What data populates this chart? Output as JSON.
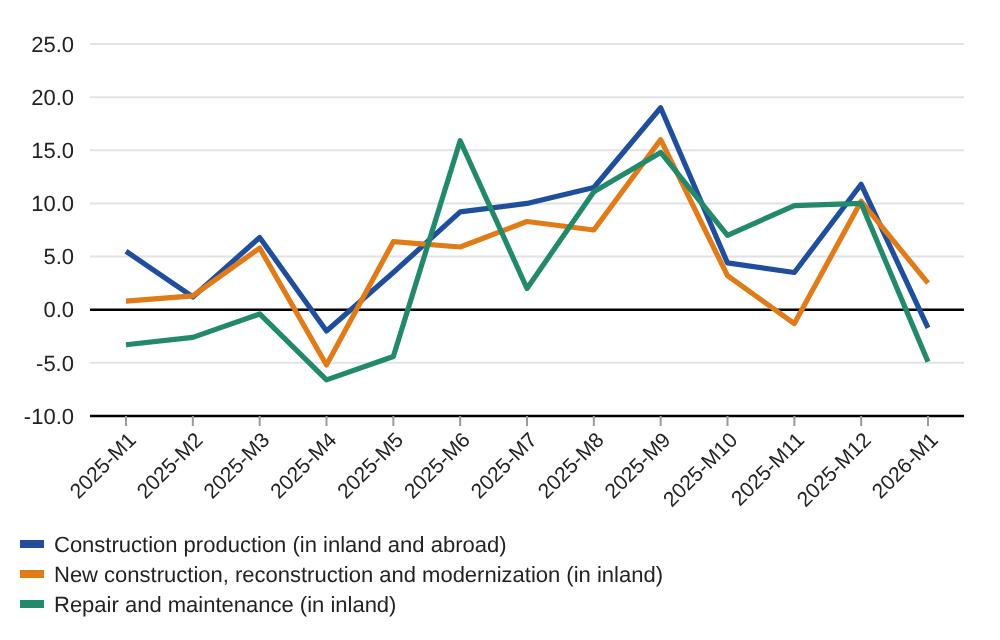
{
  "chart_data": {
    "type": "line",
    "categories": [
      "2025-M1",
      "2025-M2",
      "2025-M3",
      "2025-M4",
      "2025-M5",
      "2025-M6",
      "2025-M7",
      "2025-M8",
      "2025-M9",
      "2025-M10",
      "2025-M11",
      "2025-M12",
      "2026-M1"
    ],
    "series": [
      {
        "name": "Construction production (in inland and abroad)",
        "color": "#1f4e9c",
        "values": [
          5.5,
          1.2,
          6.8,
          -2.0,
          3.5,
          9.2,
          10.0,
          11.5,
          19.0,
          4.4,
          3.5,
          11.8,
          -1.7
        ]
      },
      {
        "name": "New construction, reconstruction and modernization (in inland)",
        "color": "#e07b17",
        "values": [
          0.8,
          1.3,
          5.8,
          -5.2,
          6.4,
          5.9,
          8.3,
          7.5,
          16.0,
          3.2,
          -1.3,
          10.2,
          2.5
        ]
      },
      {
        "name": "Repair and maintenance (in inland)",
        "color": "#22896b",
        "values": [
          -3.3,
          -2.6,
          -0.4,
          -6.6,
          -4.4,
          15.9,
          2.0,
          11.1,
          14.8,
          7.0,
          9.8,
          10.0,
          -4.9
        ]
      }
    ],
    "ylim": [
      -10,
      25
    ],
    "yticks": [
      {
        "value": -10,
        "label": "-10.0"
      },
      {
        "value": -5,
        "label": "-5.0"
      },
      {
        "value": 0,
        "label": "0.0"
      },
      {
        "value": 5,
        "label": "5.0"
      },
      {
        "value": 10,
        "label": "10.0"
      },
      {
        "value": 15,
        "label": "15.0"
      },
      {
        "value": 20,
        "label": "20.0"
      },
      {
        "value": 25,
        "label": "25.0"
      }
    ],
    "ref_lines": [
      {
        "axis": "y",
        "value": 0,
        "color": "#000000"
      }
    ],
    "grid": "y",
    "legend": "bottom",
    "marker": "none",
    "line_style": "solid"
  }
}
